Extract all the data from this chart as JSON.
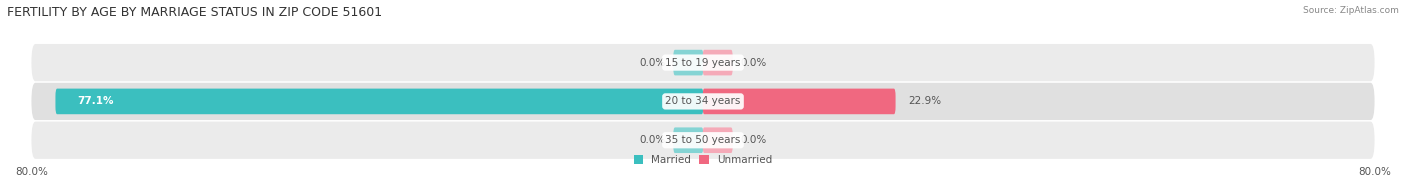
{
  "title": "FERTILITY BY AGE BY MARRIAGE STATUS IN ZIP CODE 51601",
  "source": "Source: ZipAtlas.com",
  "age_groups": [
    "15 to 19 years",
    "20 to 34 years",
    "35 to 50 years"
  ],
  "married_values": [
    0.0,
    77.1,
    0.0
  ],
  "unmarried_values": [
    0.0,
    22.9,
    0.0
  ],
  "max_value": 80.0,
  "stub_size": 3.5,
  "married_color": "#3bbfbf",
  "married_stub_color": "#85d4d4",
  "unmarried_color": "#f06880",
  "unmarried_stub_color": "#f5aab8",
  "row_bg_colors": [
    "#ebebeb",
    "#e0e0e0",
    "#ebebeb"
  ],
  "title_fontsize": 9,
  "label_fontsize": 7.5,
  "tick_fontsize": 7.5,
  "text_color_light": "#ffffff",
  "text_color_dark": "#555555",
  "background_color": "#ffffff",
  "figure_width": 14.06,
  "figure_height": 1.96
}
